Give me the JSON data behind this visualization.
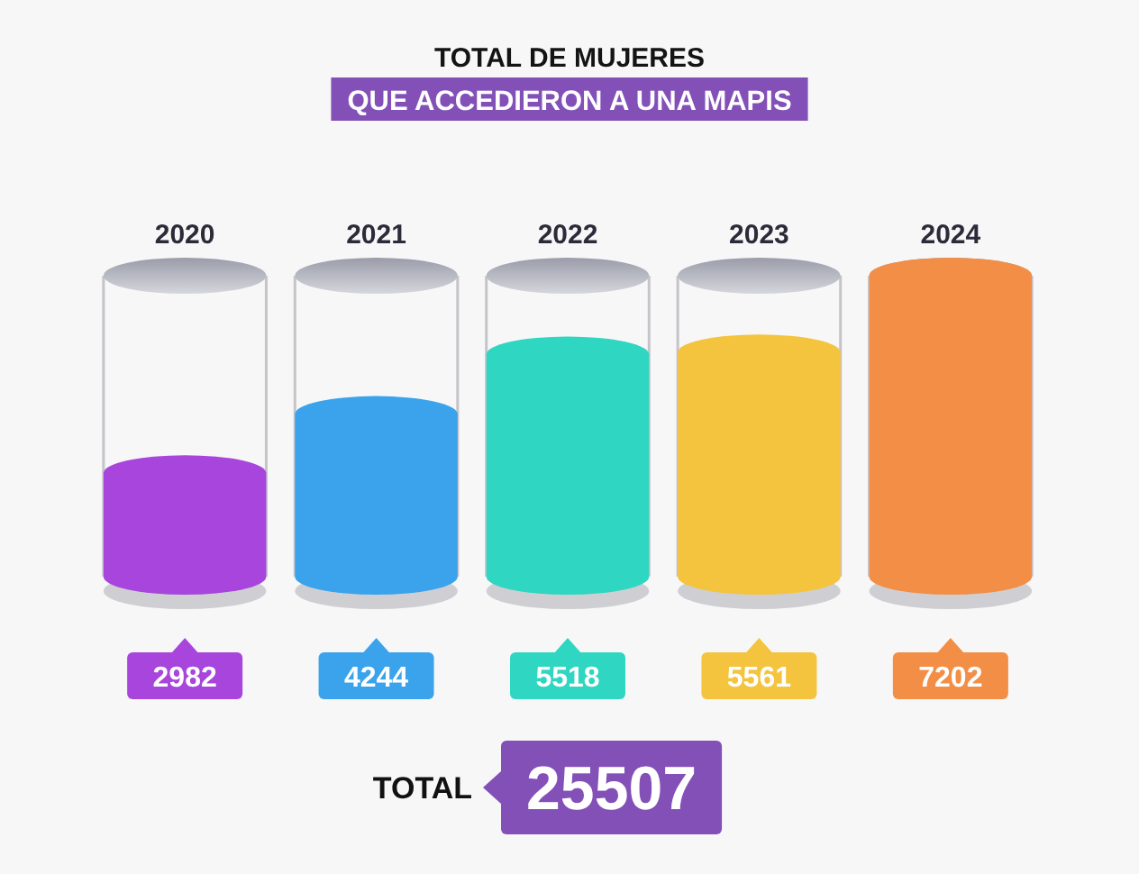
{
  "chart_data": {
    "type": "bar",
    "title": "TOTAL DE MUJERES",
    "subtitle": "QUE ACCEDIERON A UNA MAPIS",
    "categories": [
      "2020",
      "2021",
      "2022",
      "2023",
      "2024"
    ],
    "values": [
      2982,
      4244,
      5518,
      5561,
      7202
    ],
    "colors": [
      "#a845dc",
      "#3aa3ec",
      "#2fd6c2",
      "#f4c43e",
      "#f28e45"
    ],
    "data_labels": true,
    "annotations": [
      "TOTAL",
      "25507"
    ]
  }
}
